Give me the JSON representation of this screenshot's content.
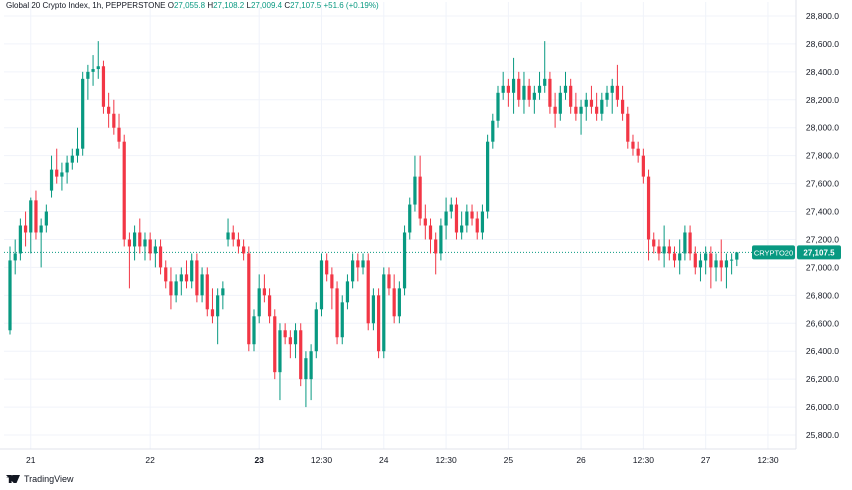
{
  "header": {
    "title": "Global 20 Crypto Index, 1h, PEPPERSTONE",
    "o_label": "O",
    "o_value": "27,055.8",
    "h_label": "H",
    "h_value": "27,108.2",
    "l_label": "L",
    "l_value": "27,009.4",
    "c_label": "C",
    "c_value": "27,107.5",
    "change": "+51.6 (+0.19%)"
  },
  "branding": {
    "label": "TradingView"
  },
  "price_tag": {
    "symbol": "CRYPTO20",
    "value": "27,107.5"
  },
  "colors": {
    "up": "#089981",
    "down": "#f23645",
    "grid": "#f0f3fa",
    "axis_text": "#131722",
    "last_line": "#089981"
  },
  "chart_data": {
    "type": "candlestick",
    "title": "Global 20 Crypto Index, 1h, PEPPERSTONE",
    "ylim": [
      25700,
      28900
    ],
    "y_ticks": [
      "25,800.0",
      "26,000.0",
      "26,200.0",
      "26,400.0",
      "26,600.0",
      "26,800.0",
      "27,000.0",
      "27,200.0",
      "27,400.0",
      "27,600.0",
      "27,800.0",
      "28,000.0",
      "28,200.0",
      "28,400.0",
      "28,600.0",
      "28,800.0"
    ],
    "x_tick_labels": [
      "21",
      "22",
      "23",
      "12:30",
      "24",
      "12:30",
      "25",
      "26",
      "12:30",
      "27",
      "12:30"
    ],
    "x_tick_bar_index": [
      4,
      27,
      48,
      60,
      72,
      84,
      96,
      110,
      122,
      134,
      146
    ],
    "last_price": 27107.5,
    "candles": [
      {
        "o": 26550,
        "h": 27150,
        "l": 26520,
        "c": 27050
      },
      {
        "o": 27050,
        "h": 27200,
        "l": 26950,
        "c": 27100
      },
      {
        "o": 27100,
        "h": 27350,
        "l": 27050,
        "c": 27300
      },
      {
        "o": 27300,
        "h": 27400,
        "l": 27150,
        "c": 27250
      },
      {
        "o": 27250,
        "h": 27500,
        "l": 27100,
        "c": 27480
      },
      {
        "o": 27480,
        "h": 27550,
        "l": 27200,
        "c": 27250
      },
      {
        "o": 27250,
        "h": 27350,
        "l": 27000,
        "c": 27300
      },
      {
        "o": 27300,
        "h": 27450,
        "l": 27250,
        "c": 27400
      },
      {
        "o": 27550,
        "h": 27800,
        "l": 27500,
        "c": 27700
      },
      {
        "o": 27700,
        "h": 27850,
        "l": 27600,
        "c": 27650
      },
      {
        "o": 27650,
        "h": 27750,
        "l": 27550,
        "c": 27680
      },
      {
        "o": 27680,
        "h": 27800,
        "l": 27600,
        "c": 27750
      },
      {
        "o": 27750,
        "h": 27850,
        "l": 27700,
        "c": 27800
      },
      {
        "o": 27800,
        "h": 28000,
        "l": 27750,
        "c": 27850
      },
      {
        "o": 27850,
        "h": 28400,
        "l": 27800,
        "c": 28350
      },
      {
        "o": 28350,
        "h": 28450,
        "l": 28200,
        "c": 28400
      },
      {
        "o": 28400,
        "h": 28520,
        "l": 28300,
        "c": 28420
      },
      {
        "o": 28420,
        "h": 28620,
        "l": 28350,
        "c": 28440
      },
      {
        "o": 28440,
        "h": 28480,
        "l": 28100,
        "c": 28150
      },
      {
        "o": 28150,
        "h": 28250,
        "l": 28000,
        "c": 28100
      },
      {
        "o": 28100,
        "h": 28200,
        "l": 27950,
        "c": 28000
      },
      {
        "o": 28000,
        "h": 28100,
        "l": 27850,
        "c": 27900
      },
      {
        "o": 27900,
        "h": 27950,
        "l": 27150,
        "c": 27200
      },
      {
        "o": 27200,
        "h": 27250,
        "l": 26850,
        "c": 27150
      },
      {
        "o": 27150,
        "h": 27300,
        "l": 27050,
        "c": 27250
      },
      {
        "o": 27250,
        "h": 27350,
        "l": 27100,
        "c": 27150
      },
      {
        "o": 27150,
        "h": 27250,
        "l": 27050,
        "c": 27200
      },
      {
        "o": 27200,
        "h": 27250,
        "l": 27050,
        "c": 27100
      },
      {
        "o": 27100,
        "h": 27200,
        "l": 27000,
        "c": 27150
      },
      {
        "o": 27150,
        "h": 27200,
        "l": 26950,
        "c": 27000
      },
      {
        "o": 27000,
        "h": 27050,
        "l": 26850,
        "c": 26900
      },
      {
        "o": 26900,
        "h": 27000,
        "l": 26700,
        "c": 26800
      },
      {
        "o": 26800,
        "h": 26950,
        "l": 26750,
        "c": 26900
      },
      {
        "o": 26900,
        "h": 27000,
        "l": 26800,
        "c": 26950
      },
      {
        "o": 26950,
        "h": 27050,
        "l": 26850,
        "c": 26900
      },
      {
        "o": 26900,
        "h": 27100,
        "l": 26850,
        "c": 27050
      },
      {
        "o": 27050,
        "h": 27100,
        "l": 26750,
        "c": 26800
      },
      {
        "o": 26800,
        "h": 27000,
        "l": 26750,
        "c": 26950
      },
      {
        "o": 26950,
        "h": 27000,
        "l": 26650,
        "c": 26700
      },
      {
        "o": 26700,
        "h": 26850,
        "l": 26600,
        "c": 26650
      },
      {
        "o": 26650,
        "h": 26850,
        "l": 26450,
        "c": 26800
      },
      {
        "o": 26800,
        "h": 26900,
        "l": 26700,
        "c": 26850
      },
      {
        "o": 27200,
        "h": 27350,
        "l": 27150,
        "c": 27250
      },
      {
        "o": 27250,
        "h": 27300,
        "l": 27150,
        "c": 27200
      },
      {
        "o": 27200,
        "h": 27250,
        "l": 27100,
        "c": 27150
      },
      {
        "o": 27150,
        "h": 27200,
        "l": 27050,
        "c": 27100
      },
      {
        "o": 27100,
        "h": 27150,
        "l": 26400,
        "c": 26450
      },
      {
        "o": 26450,
        "h": 26700,
        "l": 26400,
        "c": 26650
      },
      {
        "o": 26650,
        "h": 26950,
        "l": 26600,
        "c": 26850
      },
      {
        "o": 26850,
        "h": 26950,
        "l": 26750,
        "c": 26800
      },
      {
        "o": 26800,
        "h": 26850,
        "l": 26600,
        "c": 26650
      },
      {
        "o": 26650,
        "h": 26700,
        "l": 26200,
        "c": 26250
      },
      {
        "o": 26250,
        "h": 26600,
        "l": 26050,
        "c": 26550
      },
      {
        "o": 26550,
        "h": 26600,
        "l": 26450,
        "c": 26500
      },
      {
        "o": 26500,
        "h": 26550,
        "l": 26350,
        "c": 26450
      },
      {
        "o": 26450,
        "h": 26600,
        "l": 26350,
        "c": 26550
      },
      {
        "o": 26550,
        "h": 26600,
        "l": 26150,
        "c": 26200
      },
      {
        "o": 26200,
        "h": 26400,
        "l": 26000,
        "c": 26350
      },
      {
        "o": 26200,
        "h": 26450,
        "l": 26050,
        "c": 26400
      },
      {
        "o": 26400,
        "h": 26750,
        "l": 26350,
        "c": 26700
      },
      {
        "o": 26700,
        "h": 27100,
        "l": 26650,
        "c": 27050
      },
      {
        "o": 27050,
        "h": 27100,
        "l": 26900,
        "c": 26950
      },
      {
        "o": 26950,
        "h": 27000,
        "l": 26700,
        "c": 26850
      },
      {
        "o": 26850,
        "h": 26900,
        "l": 26450,
        "c": 26500
      },
      {
        "o": 26500,
        "h": 26800,
        "l": 26450,
        "c": 26750
      },
      {
        "o": 26750,
        "h": 26950,
        "l": 26700,
        "c": 26900
      },
      {
        "o": 26900,
        "h": 27100,
        "l": 26850,
        "c": 27050
      },
      {
        "o": 27050,
        "h": 27100,
        "l": 26900,
        "c": 27000
      },
      {
        "o": 27000,
        "h": 27100,
        "l": 26950,
        "c": 27050
      },
      {
        "o": 27050,
        "h": 27100,
        "l": 26550,
        "c": 26600
      },
      {
        "o": 26600,
        "h": 26850,
        "l": 26550,
        "c": 26800
      },
      {
        "o": 26800,
        "h": 26850,
        "l": 26350,
        "c": 26400
      },
      {
        "o": 26400,
        "h": 27000,
        "l": 26350,
        "c": 26950
      },
      {
        "o": 26950,
        "h": 27000,
        "l": 26800,
        "c": 26850
      },
      {
        "o": 26850,
        "h": 26950,
        "l": 26600,
        "c": 26650
      },
      {
        "o": 26650,
        "h": 26900,
        "l": 26600,
        "c": 26850
      },
      {
        "o": 26850,
        "h": 27300,
        "l": 26800,
        "c": 27250
      },
      {
        "o": 27250,
        "h": 27500,
        "l": 27200,
        "c": 27450
      },
      {
        "o": 27450,
        "h": 27800,
        "l": 27400,
        "c": 27650
      },
      {
        "o": 27650,
        "h": 27800,
        "l": 27300,
        "c": 27350
      },
      {
        "o": 27350,
        "h": 27450,
        "l": 27200,
        "c": 27300
      },
      {
        "o": 27300,
        "h": 27350,
        "l": 27100,
        "c": 27200
      },
      {
        "o": 27200,
        "h": 27250,
        "l": 26950,
        "c": 27100
      },
      {
        "o": 27100,
        "h": 27350,
        "l": 27050,
        "c": 27300
      },
      {
        "o": 27300,
        "h": 27500,
        "l": 27200,
        "c": 27400
      },
      {
        "o": 27400,
        "h": 27500,
        "l": 27350,
        "c": 27450
      },
      {
        "o": 27450,
        "h": 27500,
        "l": 27200,
        "c": 27250
      },
      {
        "o": 27250,
        "h": 27400,
        "l": 27200,
        "c": 27300
      },
      {
        "o": 27300,
        "h": 27450,
        "l": 27250,
        "c": 27400
      },
      {
        "o": 27400,
        "h": 27450,
        "l": 27300,
        "c": 27350
      },
      {
        "o": 27350,
        "h": 27400,
        "l": 27200,
        "c": 27250
      },
      {
        "o": 27250,
        "h": 27450,
        "l": 27200,
        "c": 27400
      },
      {
        "o": 27400,
        "h": 27950,
        "l": 27350,
        "c": 27900
      },
      {
        "o": 27900,
        "h": 28100,
        "l": 27850,
        "c": 28050
      },
      {
        "o": 28050,
        "h": 28300,
        "l": 28000,
        "c": 28250
      },
      {
        "o": 28250,
        "h": 28400,
        "l": 28200,
        "c": 28300
      },
      {
        "o": 28300,
        "h": 28350,
        "l": 28150,
        "c": 28250
      },
      {
        "o": 28250,
        "h": 28500,
        "l": 28100,
        "c": 28350
      },
      {
        "o": 28350,
        "h": 28400,
        "l": 28150,
        "c": 28200
      },
      {
        "o": 28200,
        "h": 28400,
        "l": 28100,
        "c": 28300
      },
      {
        "o": 28300,
        "h": 28350,
        "l": 28150,
        "c": 28200
      },
      {
        "o": 28200,
        "h": 28300,
        "l": 28100,
        "c": 28250
      },
      {
        "o": 28250,
        "h": 28400,
        "l": 28200,
        "c": 28300
      },
      {
        "o": 28300,
        "h": 28620,
        "l": 28250,
        "c": 28350
      },
      {
        "o": 28350,
        "h": 28400,
        "l": 28100,
        "c": 28150
      },
      {
        "o": 28150,
        "h": 28250,
        "l": 28000,
        "c": 28100
      },
      {
        "o": 28100,
        "h": 28300,
        "l": 28050,
        "c": 28250
      },
      {
        "o": 28250,
        "h": 28400,
        "l": 28200,
        "c": 28300
      },
      {
        "o": 28300,
        "h": 28350,
        "l": 28100,
        "c": 28150
      },
      {
        "o": 28150,
        "h": 28250,
        "l": 28050,
        "c": 28100
      },
      {
        "o": 28100,
        "h": 28200,
        "l": 27950,
        "c": 28150
      },
      {
        "o": 28150,
        "h": 28250,
        "l": 28050,
        "c": 28200
      },
      {
        "o": 28200,
        "h": 28300,
        "l": 28100,
        "c": 28150
      },
      {
        "o": 28150,
        "h": 28250,
        "l": 28050,
        "c": 28100
      },
      {
        "o": 28100,
        "h": 28250,
        "l": 28050,
        "c": 28200
      },
      {
        "o": 28200,
        "h": 28300,
        "l": 28150,
        "c": 28250
      },
      {
        "o": 28250,
        "h": 28350,
        "l": 28100,
        "c": 28300
      },
      {
        "o": 28300,
        "h": 28450,
        "l": 28150,
        "c": 28200
      },
      {
        "o": 28200,
        "h": 28300,
        "l": 28050,
        "c": 28100
      },
      {
        "o": 28100,
        "h": 28150,
        "l": 27850,
        "c": 27900
      },
      {
        "o": 27900,
        "h": 27950,
        "l": 27800,
        "c": 27850
      },
      {
        "o": 27850,
        "h": 27900,
        "l": 27750,
        "c": 27800
      },
      {
        "o": 27800,
        "h": 27850,
        "l": 27600,
        "c": 27650
      },
      {
        "o": 27650,
        "h": 27700,
        "l": 27050,
        "c": 27200
      },
      {
        "o": 27200,
        "h": 27250,
        "l": 27100,
        "c": 27150
      },
      {
        "o": 27150,
        "h": 27200,
        "l": 27050,
        "c": 27100
      },
      {
        "o": 27100,
        "h": 27300,
        "l": 27000,
        "c": 27150
      },
      {
        "o": 27150,
        "h": 27200,
        "l": 27050,
        "c": 27100
      },
      {
        "o": 27100,
        "h": 27150,
        "l": 27000,
        "c": 27050
      },
      {
        "o": 27050,
        "h": 27200,
        "l": 26950,
        "c": 27100
      },
      {
        "o": 27100,
        "h": 27300,
        "l": 27050,
        "c": 27250
      },
      {
        "o": 27250,
        "h": 27300,
        "l": 27050,
        "c": 27100
      },
      {
        "o": 27100,
        "h": 27150,
        "l": 26950,
        "c": 27000
      },
      {
        "o": 27000,
        "h": 27100,
        "l": 26900,
        "c": 27050
      },
      {
        "o": 27050,
        "h": 27150,
        "l": 26950,
        "c": 27100
      },
      {
        "o": 27100,
        "h": 27150,
        "l": 26850,
        "c": 27000
      },
      {
        "o": 27000,
        "h": 27100,
        "l": 26900,
        "c": 27050
      },
      {
        "o": 27050,
        "h": 27200,
        "l": 26900,
        "c": 27000
      },
      {
        "o": 27000,
        "h": 27100,
        "l": 26850,
        "c": 27050
      },
      {
        "o": 27050,
        "h": 27100,
        "l": 26950,
        "c": 27055.8
      },
      {
        "o": 27055.8,
        "h": 27108.2,
        "l": 27009.4,
        "c": 27107.5
      }
    ]
  }
}
